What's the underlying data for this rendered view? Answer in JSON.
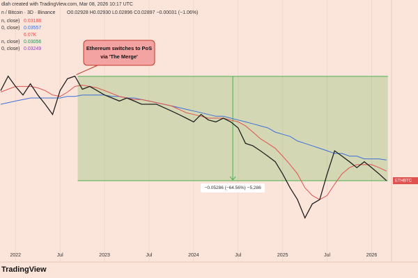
{
  "header": {
    "byline": "dlah created with TradingView.com, Mar 08, 2026 10:17 UTC",
    "symbol": "n / Bitcoin · 3D · Binance",
    "ohlc": "O0.02928  H0.02930  L0.02896  C0.02897  −0.00031 (−1.06%)",
    "indicators": [
      {
        "label": "n, close)",
        "value": "0.03188",
        "color": "#e0524f"
      },
      {
        "label": "0, close)",
        "value": "0.03557",
        "color": "#3d6fd6"
      },
      {
        "label": "",
        "value": "6.07K",
        "color": "#e0524f"
      },
      {
        "label": "n, close)",
        "value": "0.03056",
        "color": "#2e8b57"
      },
      {
        "label": "0, close)",
        "value": "0.03249",
        "color": "#8e44ad"
      }
    ],
    "logo": "TradingView"
  },
  "chart_data": {
    "type": "line",
    "log_scale": true,
    "ylim": [
      0.011,
      0.175
    ],
    "grid": true,
    "categories": [
      null,
      null,
      "2022",
      null,
      null,
      null,
      null,
      null,
      "Jul",
      null,
      null,
      null,
      null,
      null,
      "2023",
      null,
      null,
      null,
      null,
      null,
      "Jul",
      null,
      null,
      null,
      null,
      null,
      "2024",
      null,
      null,
      null,
      null,
      null,
      "Jul",
      null,
      null,
      null,
      null,
      null,
      "2025",
      null,
      null,
      null,
      null,
      null,
      "Jul",
      null,
      null,
      null,
      null,
      null,
      "2026",
      null,
      null
    ],
    "series": [
      {
        "color": "#1f1f1f",
        "values": [
          0.071,
          0.082,
          0.074,
          0.068,
          0.076,
          0.068,
          0.062,
          0.056,
          0.071,
          0.08,
          0.082,
          0.072,
          0.074,
          0.071,
          0.068,
          0.066,
          0.064,
          0.066,
          0.064,
          0.062,
          0.062,
          0.062,
          0.06,
          0.058,
          0.056,
          0.054,
          0.052,
          0.056,
          0.053,
          0.052,
          0.054,
          0.052,
          0.049,
          0.042,
          0.041,
          0.039,
          0.037,
          0.035,
          0.031,
          0.027,
          0.024,
          0.02,
          0.023,
          0.024,
          0.031,
          0.039,
          0.037,
          0.035,
          0.033,
          0.035,
          0.033,
          0.031,
          0.02897
        ]
      },
      {
        "color": "#e0524f",
        "values": [
          0.07,
          0.072,
          0.074,
          0.074,
          0.074,
          0.073,
          0.071,
          0.068,
          0.067,
          0.07,
          0.074,
          0.075,
          0.074,
          0.073,
          0.071,
          0.069,
          0.067,
          0.066,
          0.065,
          0.065,
          0.064,
          0.063,
          0.062,
          0.061,
          0.059,
          0.057,
          0.056,
          0.055,
          0.054,
          0.054,
          0.054,
          0.053,
          0.052,
          0.05,
          0.047,
          0.044,
          0.042,
          0.04,
          0.037,
          0.034,
          0.031,
          0.027,
          0.025,
          0.024,
          0.025,
          0.028,
          0.031,
          0.033,
          0.034,
          0.034,
          0.034,
          0.033,
          0.03188
        ]
      },
      {
        "color": "#3d6fd6",
        "values": [
          0.062,
          0.063,
          0.064,
          0.065,
          0.066,
          0.066,
          0.066,
          0.066,
          0.066,
          0.067,
          0.067,
          0.068,
          0.068,
          0.068,
          0.068,
          0.067,
          0.067,
          0.066,
          0.066,
          0.065,
          0.064,
          0.063,
          0.062,
          0.061,
          0.06,
          0.059,
          0.058,
          0.057,
          0.056,
          0.055,
          0.055,
          0.054,
          0.053,
          0.052,
          0.051,
          0.05,
          0.049,
          0.047,
          0.046,
          0.045,
          0.043,
          0.042,
          0.041,
          0.04,
          0.039,
          0.038,
          0.038,
          0.037,
          0.037,
          0.036,
          0.036,
          0.036,
          0.03557
        ]
      }
    ],
    "annotation": [
      "Ethereum switches to PoS",
      "via 'The Merge'"
    ],
    "measure": {
      "from": 0.08183,
      "to": 0.02897,
      "label": "−0.05286 (−64.56%) −5,286"
    },
    "price_tag": "ETHBTC"
  }
}
